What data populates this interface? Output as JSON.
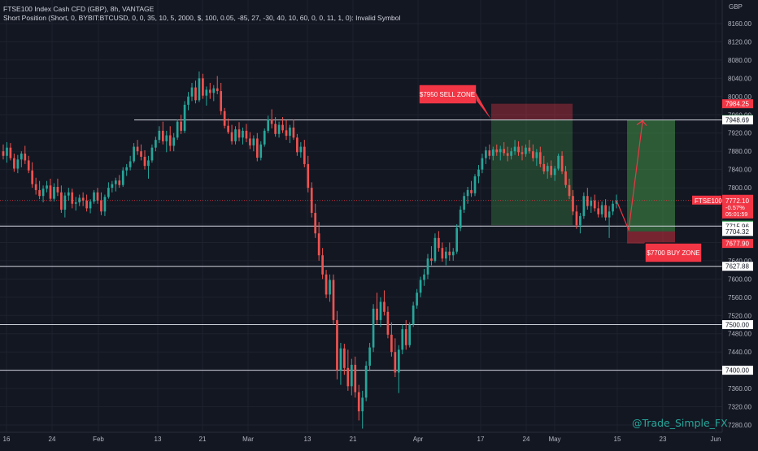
{
  "header": {
    "title": "FTSE100 Index Cash CFD (GBP), 8h, VANTAGE",
    "indicator": "Short Position (Short, 0, BYBIT:BTCUSD, 0, 0, 35, 10, 5, 2000, $, 100, 0.05, -85, 27, -30, 40, 10, 60, 0, 0, 11, 1, 0): Invalid Symbol"
  },
  "watermark": "@Trade_Simple_FX",
  "chart_data": {
    "type": "candlestick",
    "currency_label": "GBP",
    "ylim": [
      7268,
      8200
    ],
    "y_ticks": [
      8160,
      8120,
      8080,
      8040,
      8000,
      7960,
      7920,
      7880,
      7840,
      7800,
      7760,
      7720,
      7680,
      7640,
      7600,
      7560,
      7520,
      7480,
      7440,
      7400,
      7360,
      7320,
      7280
    ],
    "x_ticks": [
      "16",
      "24",
      "Feb",
      "13",
      "21",
      "Mar",
      "13",
      "21",
      "Apr",
      "17",
      "24",
      "May",
      "15",
      "23",
      "Jun"
    ],
    "symbol_tag": "FTSE100",
    "last_price": {
      "value": "7772.10",
      "change": "-0.57%",
      "countdown": "05:01:59"
    },
    "price_labels": [
      "7984.25",
      "7949.58",
      "7948.69",
      "7718.08",
      "7715.96",
      "7704.32",
      "7677.90",
      "7627.88",
      "7500.00",
      "7400.00"
    ],
    "horizontal_levels": [
      7948.69,
      7715.96,
      7627.88,
      7500,
      7400
    ],
    "short_position": {
      "entry": 7949.58,
      "stop": 7984.25,
      "target": 7718.08
    },
    "long_position": {
      "entry": 7704.32,
      "stop": 7677.9,
      "target": 7948.69
    },
    "annotations": [
      {
        "text": "$7950 SELL ZONE",
        "price": 7950
      },
      {
        "text": "$7700 BUY ZONE",
        "price": 7700
      }
    ],
    "candles": [
      [
        7880,
        7895,
        7862,
        7870
      ],
      [
        7870,
        7900,
        7855,
        7888
      ],
      [
        7888,
        7898,
        7860,
        7865
      ],
      [
        7865,
        7875,
        7835,
        7842
      ],
      [
        7842,
        7872,
        7832,
        7862
      ],
      [
        7862,
        7880,
        7845,
        7875
      ],
      [
        7875,
        7892,
        7852,
        7860
      ],
      [
        7860,
        7870,
        7832,
        7838
      ],
      [
        7838,
        7856,
        7800,
        7808
      ],
      [
        7808,
        7822,
        7785,
        7795
      ],
      [
        7795,
        7815,
        7775,
        7782
      ],
      [
        7782,
        7805,
        7768,
        7798
      ],
      [
        7798,
        7815,
        7790,
        7805
      ],
      [
        7805,
        7820,
        7770,
        7776
      ],
      [
        7776,
        7810,
        7770,
        7802
      ],
      [
        7802,
        7820,
        7782,
        7790
      ],
      [
        7790,
        7805,
        7745,
        7752
      ],
      [
        7752,
        7790,
        7735,
        7783
      ],
      [
        7783,
        7800,
        7772,
        7790
      ],
      [
        7790,
        7798,
        7755,
        7765
      ],
      [
        7765,
        7780,
        7750,
        7768
      ],
      [
        7768,
        7785,
        7760,
        7778
      ],
      [
        7778,
        7790,
        7760,
        7772
      ],
      [
        7772,
        7785,
        7748,
        7755
      ],
      [
        7755,
        7775,
        7744,
        7770
      ],
      [
        7770,
        7795,
        7765,
        7790
      ],
      [
        7790,
        7800,
        7765,
        7772
      ],
      [
        7772,
        7790,
        7740,
        7748
      ],
      [
        7748,
        7785,
        7738,
        7780
      ],
      [
        7780,
        7812,
        7776,
        7800
      ],
      [
        7800,
        7815,
        7790,
        7808
      ],
      [
        7808,
        7822,
        7792,
        7816
      ],
      [
        7816,
        7828,
        7800,
        7806
      ],
      [
        7806,
        7845,
        7802,
        7838
      ],
      [
        7838,
        7852,
        7826,
        7845
      ],
      [
        7845,
        7870,
        7838,
        7858
      ],
      [
        7858,
        7898,
        7854,
        7890
      ],
      [
        7890,
        7905,
        7872,
        7880
      ],
      [
        7880,
        7895,
        7860,
        7868
      ],
      [
        7868,
        7882,
        7840,
        7848
      ],
      [
        7848,
        7870,
        7820,
        7860
      ],
      [
        7860,
        7895,
        7855,
        7888
      ],
      [
        7888,
        7912,
        7880,
        7905
      ],
      [
        7905,
        7935,
        7898,
        7925
      ],
      [
        7925,
        7945,
        7895,
        7902
      ],
      [
        7902,
        7925,
        7878,
        7915
      ],
      [
        7915,
        7935,
        7880,
        7892
      ],
      [
        7892,
        7920,
        7880,
        7910
      ],
      [
        7910,
        7950,
        7905,
        7945
      ],
      [
        7945,
        7960,
        7918,
        7925
      ],
      [
        7925,
        7990,
        7920,
        7982
      ],
      [
        7982,
        8010,
        7970,
        8000
      ],
      [
        8000,
        8030,
        7990,
        8020
      ],
      [
        8020,
        8035,
        7985,
        7992
      ],
      [
        7992,
        8055,
        7988,
        8040
      ],
      [
        8040,
        8050,
        7995,
        8002
      ],
      [
        8002,
        8022,
        7980,
        8015
      ],
      [
        8015,
        8030,
        7995,
        8008
      ],
      [
        8008,
        8025,
        7990,
        8018
      ],
      [
        8018,
        8045,
        8005,
        8012
      ],
      [
        8012,
        8030,
        7960,
        7968
      ],
      [
        7968,
        7975,
        7930,
        7936
      ],
      [
        7936,
        7952,
        7918,
        7922
      ],
      [
        7922,
        7938,
        7895,
        7902
      ],
      [
        7902,
        7935,
        7895,
        7928
      ],
      [
        7928,
        7944,
        7902,
        7910
      ],
      [
        7910,
        7932,
        7895,
        7925
      ],
      [
        7925,
        7940,
        7900,
        7908
      ],
      [
        7908,
        7922,
        7885,
        7893
      ],
      [
        7893,
        7915,
        7880,
        7908
      ],
      [
        7908,
        7920,
        7858,
        7866
      ],
      [
        7866,
        7902,
        7860,
        7895
      ],
      [
        7895,
        7930,
        7890,
        7925
      ],
      [
        7925,
        7958,
        7920,
        7950
      ],
      [
        7950,
        7972,
        7930,
        7940
      ],
      [
        7940,
        7955,
        7912,
        7918
      ],
      [
        7918,
        7945,
        7910,
        7938
      ],
      [
        7938,
        7955,
        7920,
        7926
      ],
      [
        7926,
        7948,
        7905,
        7914
      ],
      [
        7914,
        7938,
        7898,
        7932
      ],
      [
        7932,
        7950,
        7905,
        7910
      ],
      [
        7910,
        7918,
        7870,
        7878
      ],
      [
        7878,
        7900,
        7866,
        7890
      ],
      [
        7890,
        7905,
        7845,
        7852
      ],
      [
        7852,
        7870,
        7790,
        7800
      ],
      [
        7800,
        7812,
        7735,
        7745
      ],
      [
        7745,
        7765,
        7690,
        7700
      ],
      [
        7700,
        7725,
        7640,
        7652
      ],
      [
        7652,
        7668,
        7600,
        7610
      ],
      [
        7610,
        7620,
        7558,
        7566
      ],
      [
        7566,
        7610,
        7550,
        7598
      ],
      [
        7598,
        7610,
        7500,
        7510
      ],
      [
        7510,
        7530,
        7380,
        7400
      ],
      [
        7400,
        7460,
        7368,
        7448
      ],
      [
        7448,
        7458,
        7390,
        7405
      ],
      [
        7405,
        7445,
        7355,
        7365
      ],
      [
        7365,
        7425,
        7345,
        7412
      ],
      [
        7412,
        7430,
        7340,
        7352
      ],
      [
        7352,
        7368,
        7290,
        7310
      ],
      [
        7310,
        7355,
        7272,
        7340
      ],
      [
        7340,
        7420,
        7332,
        7410
      ],
      [
        7410,
        7460,
        7398,
        7450
      ],
      [
        7450,
        7545,
        7440,
        7535
      ],
      [
        7535,
        7570,
        7500,
        7510
      ],
      [
        7510,
        7560,
        7495,
        7550
      ],
      [
        7550,
        7575,
        7520,
        7528
      ],
      [
        7528,
        7540,
        7470,
        7478
      ],
      [
        7478,
        7505,
        7430,
        7440
      ],
      [
        7440,
        7470,
        7385,
        7395
      ],
      [
        7395,
        7455,
        7350,
        7445
      ],
      [
        7445,
        7500,
        7435,
        7490
      ],
      [
        7490,
        7510,
        7445,
        7455
      ],
      [
        7455,
        7505,
        7450,
        7500
      ],
      [
        7500,
        7550,
        7495,
        7542
      ],
      [
        7542,
        7578,
        7535,
        7570
      ],
      [
        7570,
        7605,
        7560,
        7598
      ],
      [
        7598,
        7622,
        7585,
        7610
      ],
      [
        7610,
        7655,
        7600,
        7645
      ],
      [
        7645,
        7672,
        7630,
        7640
      ],
      [
        7640,
        7700,
        7636,
        7690
      ],
      [
        7690,
        7705,
        7660,
        7668
      ],
      [
        7668,
        7680,
        7638,
        7645
      ],
      [
        7645,
        7670,
        7630,
        7660
      ],
      [
        7660,
        7680,
        7640,
        7652
      ],
      [
        7652,
        7668,
        7640,
        7660
      ],
      [
        7660,
        7720,
        7655,
        7712
      ],
      [
        7712,
        7760,
        7705,
        7752
      ],
      [
        7752,
        7790,
        7745,
        7782
      ],
      [
        7782,
        7802,
        7765,
        7795
      ],
      [
        7795,
        7815,
        7780,
        7788
      ],
      [
        7788,
        7830,
        7782,
        7825
      ],
      [
        7825,
        7850,
        7810,
        7840
      ],
      [
        7840,
        7875,
        7832,
        7865
      ],
      [
        7865,
        7890,
        7852,
        7882
      ],
      [
        7882,
        7895,
        7862,
        7870
      ],
      [
        7870,
        7890,
        7860,
        7884
      ],
      [
        7884,
        7895,
        7870,
        7878
      ],
      [
        7878,
        7892,
        7860,
        7885
      ],
      [
        7885,
        7900,
        7870,
        7876
      ],
      [
        7876,
        7890,
        7858,
        7870
      ],
      [
        7870,
        7888,
        7862,
        7880
      ],
      [
        7880,
        7905,
        7872,
        7890
      ],
      [
        7890,
        7902,
        7870,
        7878
      ],
      [
        7878,
        7892,
        7860,
        7874
      ],
      [
        7874,
        7895,
        7868,
        7888
      ],
      [
        7888,
        7905,
        7875,
        7880
      ],
      [
        7880,
        7895,
        7858,
        7865
      ],
      [
        7865,
        7885,
        7848,
        7878
      ],
      [
        7878,
        7890,
        7845,
        7852
      ],
      [
        7852,
        7870,
        7830,
        7836
      ],
      [
        7836,
        7855,
        7820,
        7848
      ],
      [
        7848,
        7860,
        7822,
        7828
      ],
      [
        7828,
        7848,
        7815,
        7842
      ],
      [
        7842,
        7875,
        7838,
        7870
      ],
      [
        7870,
        7880,
        7830,
        7836
      ],
      [
        7836,
        7848,
        7800,
        7806
      ],
      [
        7806,
        7820,
        7775,
        7782
      ],
      [
        7782,
        7795,
        7740,
        7748
      ],
      [
        7748,
        7762,
        7710,
        7718
      ],
      [
        7718,
        7745,
        7700,
        7738
      ],
      [
        7738,
        7790,
        7732,
        7782
      ],
      [
        7782,
        7800,
        7752,
        7760
      ],
      [
        7760,
        7780,
        7745,
        7772
      ],
      [
        7772,
        7785,
        7748,
        7755
      ],
      [
        7755,
        7770,
        7735,
        7742
      ],
      [
        7742,
        7770,
        7735,
        7762
      ],
      [
        7762,
        7775,
        7728,
        7735
      ],
      [
        7735,
        7760,
        7690,
        7748
      ],
      [
        7748,
        7772,
        7740,
        7765
      ],
      [
        7765,
        7785,
        7755,
        7772
      ]
    ]
  }
}
